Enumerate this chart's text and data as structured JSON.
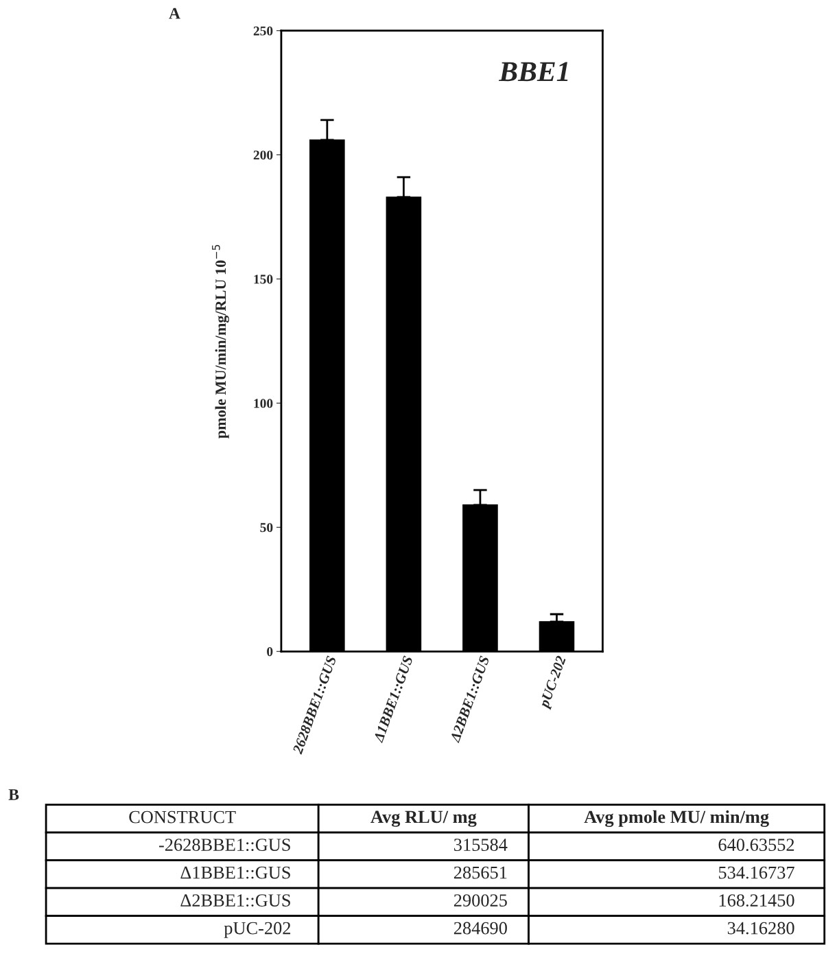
{
  "chart_data": [
    {
      "type": "bar",
      "title": "A",
      "ylabel": "pmole MU/min/mg/RLU 10$^{−5}$",
      "annotations": [
        "BBE1"
      ],
      "categories": [
        "2628BBE1::GUS",
        "Δ1BBE1::GUS",
        "Δ2BBE1::GUS",
        "pUC-202"
      ],
      "values": [
        206,
        183,
        59,
        12
      ],
      "errors": [
        [
          206,
          214
        ],
        [
          183,
          191
        ],
        [
          59,
          65
        ],
        [
          12,
          15
        ]
      ],
      "color": "#000000",
      "ylim": [
        0,
        250
      ],
      "yticks": [
        0,
        50,
        100,
        150,
        200,
        250
      ],
      "grid": false
    },
    {
      "type": "other",
      "title": "B",
      "xlabel": "CONSTRUCT",
      "categories": [
        "-2628BBE1::GUS",
        "Δ1BBE1::GUS",
        "Δ2BBE1::GUS",
        "pUC-202"
      ],
      "series": [
        {
          "name": "Avg RLU/ mg",
          "values": [
            315584,
            285651,
            290025,
            284690
          ],
          "value_labels": [
            "315584",
            "285651",
            "290025",
            "284690"
          ]
        },
        {
          "name": "Avg pmole MU/ min/mg",
          "values": [
            640.63552,
            534.16737,
            168.2145,
            34.1628
          ],
          "value_labels": [
            "640.63552",
            "534.16737",
            "168.21450",
            "34.16280"
          ]
        }
      ]
    }
  ]
}
